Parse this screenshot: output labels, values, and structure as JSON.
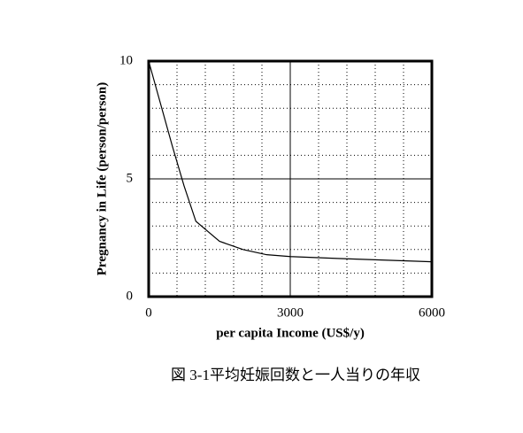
{
  "chart_data": {
    "type": "line",
    "x_label": "per capita Income (US$/y)",
    "y_label": "Pregnancy in Life (person/person)",
    "caption": "図 3-1平均妊娠回数と一人当りの年収",
    "x": [
      0,
      250,
      500,
      750,
      1000,
      1500,
      2000,
      2500,
      3000,
      4000,
      5000,
      6000
    ],
    "series": [
      {
        "color": "#000000",
        "values": [
          10,
          8.2,
          6.4,
          4.7,
          3.2,
          2.35,
          2.0,
          1.78,
          1.7,
          1.62,
          1.55,
          1.48
        ]
      }
    ],
    "xlim": [
      0,
      6000
    ],
    "xticks": [
      0,
      3000,
      6000
    ],
    "ylim": [
      0,
      10
    ],
    "yticks": [
      0,
      5,
      10
    ],
    "minor_xticks": [
      600,
      1200,
      1800,
      2400,
      3600,
      4200,
      4800,
      5400
    ],
    "minor_yticks": [
      1,
      2,
      3,
      4,
      6,
      7,
      8,
      9
    ],
    "grid": true
  }
}
